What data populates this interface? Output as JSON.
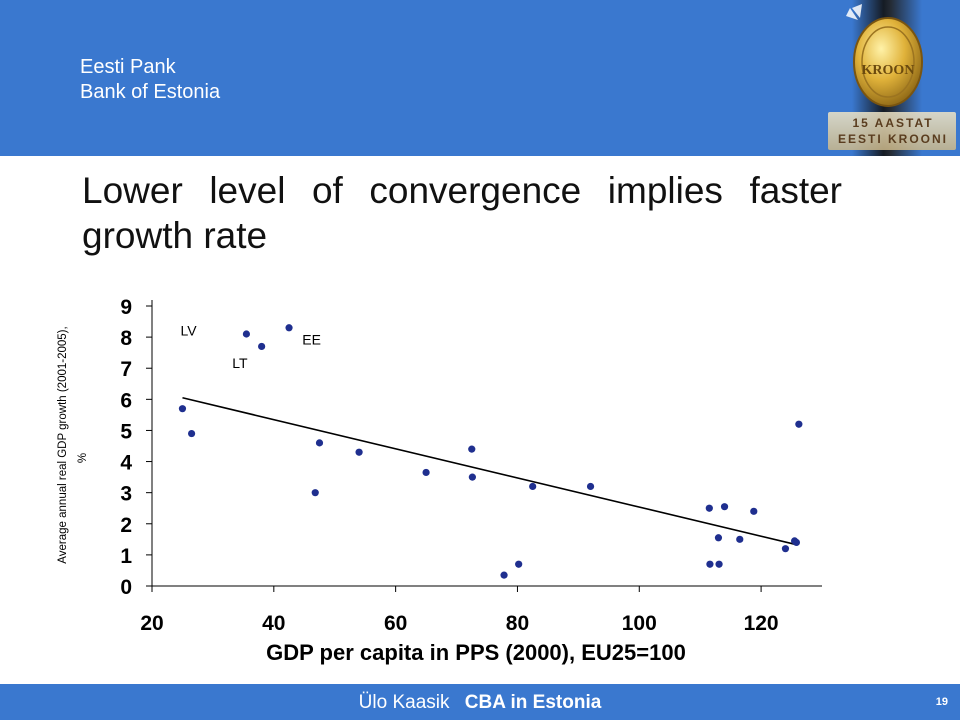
{
  "header": {
    "org_line1": "Eesti Pank",
    "org_line2": "Bank of Estonia",
    "badge_line1": "15 AASTAT",
    "badge_line2": "EESTI KROONI",
    "coin_text": "KROON"
  },
  "slide": {
    "title": "Lower level of convergence implies faster growth rate"
  },
  "footer": {
    "author": "Ülo Kaasik",
    "topic": "CBA in Estonia",
    "page": "19"
  },
  "colors": {
    "header_bg": "#3a78cf",
    "point": "#1f2f8f",
    "trend": "#000000"
  },
  "chart_data": {
    "type": "scatter",
    "xlabel": "GDP per capita in PPS (2000), EU25=100",
    "ylabel": "Average annual real GDP growth (2001-2005), %",
    "xlim": [
      20,
      130
    ],
    "ylim": [
      0,
      9
    ],
    "xticks": [
      20,
      40,
      60,
      80,
      100,
      120
    ],
    "yticks": [
      0,
      1,
      2,
      3,
      4,
      5,
      6,
      7,
      8,
      9
    ],
    "grid": false,
    "points": [
      {
        "x": 25,
        "y": 5.7
      },
      {
        "x": 26.5,
        "y": 4.9
      },
      {
        "x": 35.5,
        "y": 8.1
      },
      {
        "x": 38,
        "y": 7.7
      },
      {
        "x": 42.5,
        "y": 8.3
      },
      {
        "x": 46.8,
        "y": 3.0
      },
      {
        "x": 47.5,
        "y": 4.6
      },
      {
        "x": 54,
        "y": 4.3
      },
      {
        "x": 65,
        "y": 3.65
      },
      {
        "x": 72.5,
        "y": 4.4
      },
      {
        "x": 72.6,
        "y": 3.5
      },
      {
        "x": 77.8,
        "y": 0.35
      },
      {
        "x": 80.2,
        "y": 0.7
      },
      {
        "x": 82.5,
        "y": 3.2
      },
      {
        "x": 92,
        "y": 3.2
      },
      {
        "x": 111.5,
        "y": 2.5
      },
      {
        "x": 111.6,
        "y": 0.7
      },
      {
        "x": 113,
        "y": 1.55
      },
      {
        "x": 113.1,
        "y": 0.7
      },
      {
        "x": 114,
        "y": 2.55
      },
      {
        "x": 116.5,
        "y": 1.5
      },
      {
        "x": 118.8,
        "y": 2.4
      },
      {
        "x": 124,
        "y": 1.2
      },
      {
        "x": 125.5,
        "y": 1.45
      },
      {
        "x": 125.8,
        "y": 1.4
      },
      {
        "x": 126.2,
        "y": 5.2
      }
    ],
    "trendline": {
      "x": [
        25,
        126
      ],
      "y": [
        6.05,
        1.32
      ]
    },
    "annotations": [
      {
        "text": "LV",
        "x": 25,
        "y": 8.25
      },
      {
        "text": "LT",
        "x": 33.5,
        "y": 7.2
      },
      {
        "text": "EE",
        "x": 45,
        "y": 7.95
      }
    ]
  }
}
